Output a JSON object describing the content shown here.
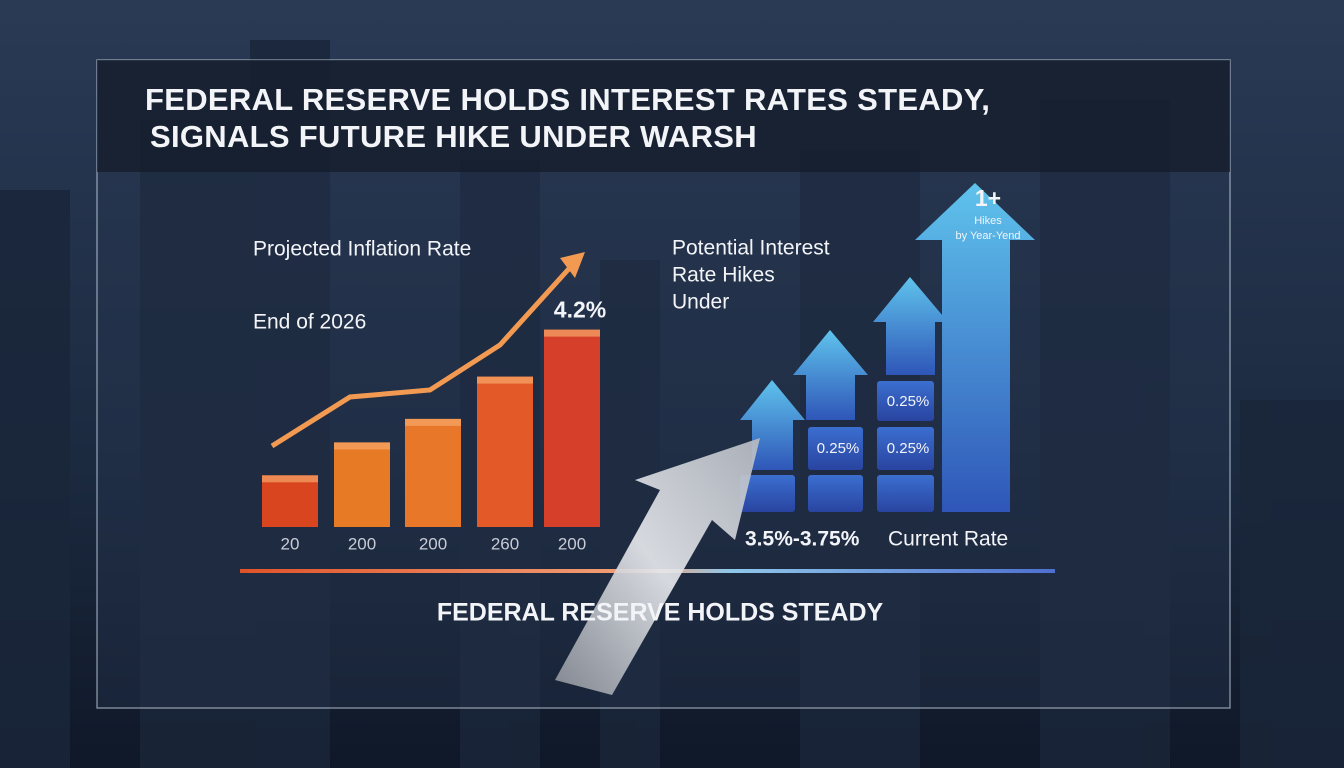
{
  "header": {
    "title_lines": [
      "FEDERAL RESERVE HOLDS INTEREST RATES STEADY,",
      "SIGNALS FUTURE HIKE UNDER WARSH"
    ]
  },
  "chart_data": {
    "type": "bar",
    "title": "Projected Inflation Rate",
    "subtitle": "End of 2026",
    "categories": [
      "20",
      "200",
      "200",
      "260",
      "200"
    ],
    "values": [
      1.1,
      1.8,
      2.3,
      3.2,
      4.2
    ],
    "value_labels": [
      null,
      null,
      null,
      null,
      "4.2%"
    ],
    "colors": [
      "#d8451f",
      "#e77a25",
      "#e8772a",
      "#e35a28",
      "#d6402a"
    ]
  },
  "rate_panel": {
    "title_lines": [
      "Potential Interest",
      "Rate Hikes",
      "Under"
    ],
    "step_labels": [
      "0.25%",
      "0.25%",
      "0.25%"
    ],
    "top_label": "1+",
    "top_caption_lines": [
      "Hikes",
      "by Year-Yend"
    ],
    "current_rate": "3.5%-3.75%",
    "current_label": "Current Rate"
  },
  "footer": {
    "title": "FEDERAL RESERVE HOLDS STEADY"
  }
}
